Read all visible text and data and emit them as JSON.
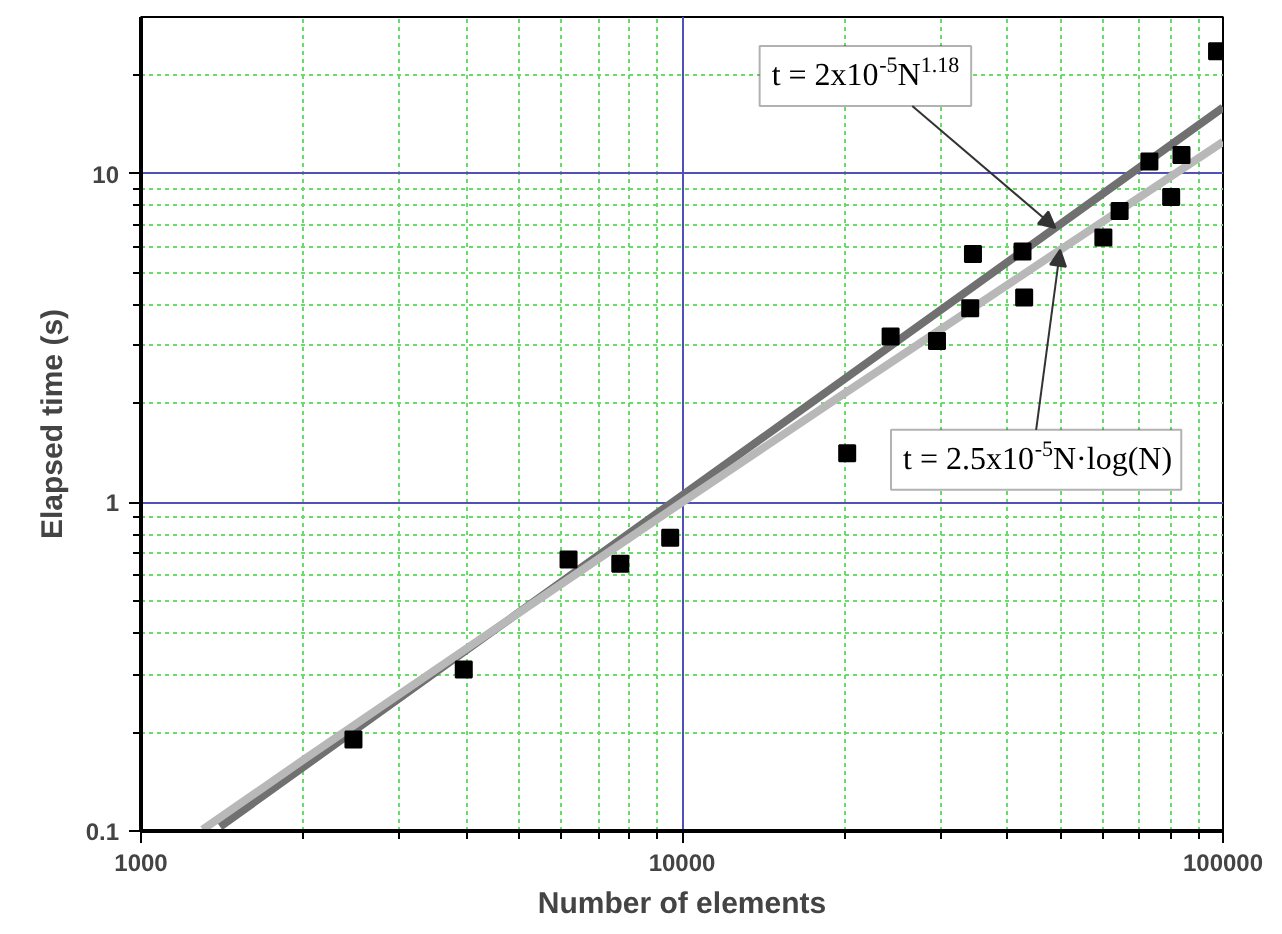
{
  "chart_data": {
    "type": "scatter",
    "xlabel": "Number of elements",
    "ylabel": "Elapsed time (s)",
    "log": "xy",
    "grid": true,
    "xlim": [
      1000,
      100000
    ],
    "ylim": [
      0.1,
      30
    ],
    "xticks": [
      1000,
      {
        "value": 2000,
        "label": null
      },
      {
        "value": 3000,
        "label": null
      },
      {
        "value": 4000,
        "label": null
      },
      {
        "value": 5000,
        "label": null
      },
      {
        "value": 6000,
        "label": null
      },
      {
        "value": 7000,
        "label": null
      },
      {
        "value": 8000,
        "label": null
      },
      {
        "value": 9000,
        "label": null
      },
      10000,
      {
        "value": 20000,
        "label": null
      },
      {
        "value": 30000,
        "label": null
      },
      {
        "value": 40000,
        "label": null
      },
      {
        "value": 50000,
        "label": null
      },
      {
        "value": 60000,
        "label": null
      },
      {
        "value": 70000,
        "label": null
      },
      {
        "value": 80000,
        "label": null
      },
      {
        "value": 90000,
        "label": null
      },
      100000
    ],
    "yticks": [
      0.1,
      {
        "value": 0.2,
        "label": null
      },
      {
        "value": 0.3,
        "label": null
      },
      {
        "value": 0.4,
        "label": null
      },
      {
        "value": 0.5,
        "label": null
      },
      {
        "value": 0.6,
        "label": null
      },
      {
        "value": 0.7,
        "label": null
      },
      {
        "value": 0.8,
        "label": null
      },
      {
        "value": 0.9,
        "label": null
      },
      1,
      {
        "value": 2,
        "label": null
      },
      {
        "value": 3,
        "label": null
      },
      {
        "value": 4,
        "label": null
      },
      {
        "value": 5,
        "label": null
      },
      {
        "value": 6,
        "label": null
      },
      {
        "value": 7,
        "label": null
      },
      {
        "value": 8,
        "label": null
      },
      {
        "value": 9,
        "label": null
      },
      10,
      {
        "value": 20,
        "label": null
      }
    ],
    "series": [
      {
        "marker": "square",
        "color": "#000000",
        "x": [
          2470,
          3950,
          6170,
          7690,
          9510,
          20200,
          24300,
          29600,
          34100,
          34500,
          42600,
          42900,
          60100,
          64400,
          73100,
          80200,
          83800,
          97500
        ],
        "values": [
          0.19,
          0.31,
          0.67,
          0.65,
          0.78,
          1.41,
          3.2,
          3.1,
          3.9,
          5.7,
          5.8,
          4.2,
          6.4,
          7.7,
          10.9,
          8.5,
          11.4,
          23.6
        ]
      },
      {
        "type": "line",
        "color": "#707070",
        "x": [
          1400,
          10000,
          100000
        ],
        "values": [
          0.103,
          1.05,
          15.9
        ]
      },
      {
        "type": "line",
        "color": "#b8b8b8",
        "x": [
          1300,
          2000,
          5000,
          10000,
          20000,
          50000,
          100000
        ],
        "values": [
          0.101,
          0.165,
          0.462,
          1.0,
          2.15,
          5.87,
          12.5
        ]
      }
    ],
    "annotations": [
      {
        "text": "t = 2x10$^{-5}$N$^{1.18}$",
        "x": 49000,
        "y": 6.84
      },
      {
        "text": "t = 2.5x10$^{-5}$N·log(N)",
        "x": 50000,
        "y": 5.87
      }
    ]
  }
}
